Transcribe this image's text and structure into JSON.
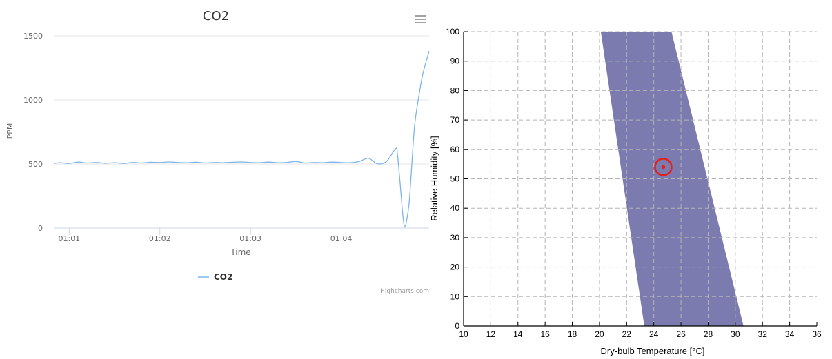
{
  "chart_data": [
    {
      "type": "line",
      "title": "CO2",
      "ylabel": "PPM",
      "xlabel": "Time",
      "ylim": [
        0,
        1500
      ],
      "yticks": [
        0,
        500,
        1000,
        1500
      ],
      "xticks": [
        "01:01",
        "01:02",
        "01:03",
        "01:04"
      ],
      "xtick_minutes": [
        1,
        2,
        3,
        4
      ],
      "xlim_minutes": [
        0.83,
        4.97
      ],
      "grid": "horizontal",
      "legend_position": "bottom-center",
      "credits": "Highcharts.com",
      "menu_icon": "hamburger-icon",
      "colors": {
        "line": "#7cb5ec",
        "grid": "#e6e6e6",
        "axis": "#ccd6eb"
      },
      "series": [
        {
          "name": "CO2",
          "x_minutes": [
            0.83,
            0.9,
            1.0,
            1.1,
            1.2,
            1.3,
            1.4,
            1.5,
            1.6,
            1.7,
            1.8,
            1.9,
            2.0,
            2.1,
            2.2,
            2.3,
            2.4,
            2.5,
            2.6,
            2.7,
            2.8,
            2.9,
            3.0,
            3.1,
            3.2,
            3.3,
            3.4,
            3.5,
            3.6,
            3.7,
            3.8,
            3.9,
            4.0,
            4.1,
            4.2,
            4.3,
            4.4,
            4.5,
            4.6,
            4.62,
            4.65,
            4.68,
            4.7,
            4.72,
            4.75,
            4.78,
            4.81,
            4.85,
            4.9,
            4.97
          ],
          "values": [
            505,
            510,
            505,
            515,
            508,
            512,
            506,
            510,
            505,
            512,
            508,
            514,
            512,
            516,
            512,
            510,
            514,
            508,
            512,
            510,
            514,
            516,
            512,
            510,
            515,
            510,
            512,
            520,
            508,
            512,
            510,
            515,
            512,
            510,
            520,
            545,
            502,
            520,
            620,
            580,
            350,
            100,
            10,
            50,
            200,
            500,
            800,
            1000,
            1200,
            1380
          ]
        }
      ]
    },
    {
      "type": "area",
      "title": "",
      "xlabel": "Dry-bulb Temperature [°C]",
      "ylabel": "Relative Humidity [%]",
      "xlim": [
        10,
        36
      ],
      "ylim": [
        0,
        100
      ],
      "xticks": [
        10,
        12,
        14,
        16,
        18,
        20,
        22,
        24,
        26,
        28,
        30,
        32,
        34,
        36
      ],
      "yticks": [
        0,
        10,
        20,
        30,
        40,
        50,
        60,
        70,
        80,
        90,
        100
      ],
      "grid": "dashed",
      "colors": {
        "zone": "#7b7bb0",
        "point": "#e3201a"
      },
      "comfort_zone": {
        "polygon": [
          [
            20.1,
            100
          ],
          [
            25.3,
            100
          ],
          [
            30.6,
            0
          ],
          [
            23.3,
            0
          ]
        ]
      },
      "current_point": {
        "x": 24.7,
        "y": 54
      }
    }
  ]
}
